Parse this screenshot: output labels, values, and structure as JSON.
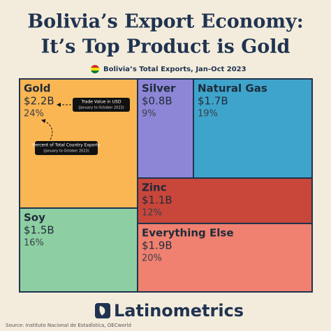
{
  "chart_data": {
    "type": "treemap",
    "title": [
      "Bolivia’s Export Economy:",
      "It’s Top Product is Gold"
    ],
    "subtitle": "Bolivia’s Total Exports, Jan-Oct 2023",
    "categories": [
      "Gold",
      "Silver",
      "Natural Gas",
      "Zinc",
      "Soy",
      "Everything Else"
    ],
    "values": [
      2.2,
      0.8,
      1.7,
      1.1,
      1.5,
      1.9
    ],
    "value_labels": [
      "$2.2B",
      "$0.8B",
      "$1.7B",
      "$1.1B",
      "$1.5B",
      "$1.9B"
    ],
    "shares": [
      24,
      9,
      19,
      12,
      16,
      20
    ],
    "share_labels": [
      "24%",
      "9%",
      "19%",
      "12%",
      "16%",
      "20%"
    ],
    "colors": [
      "#f9b653",
      "#8d86d6",
      "#3fa4cc",
      "#c9463a",
      "#8dcfa2",
      "#f08070"
    ],
    "annotations": [
      [
        "Trade Value in USD",
        "(January to October 2023)"
      ],
      [
        "Percent of Total Country Exports",
        "(January to October 2023)"
      ]
    ],
    "brand": "Latinometrics",
    "source": "Source: Instituto Nacional de Estadística, OECworld"
  }
}
